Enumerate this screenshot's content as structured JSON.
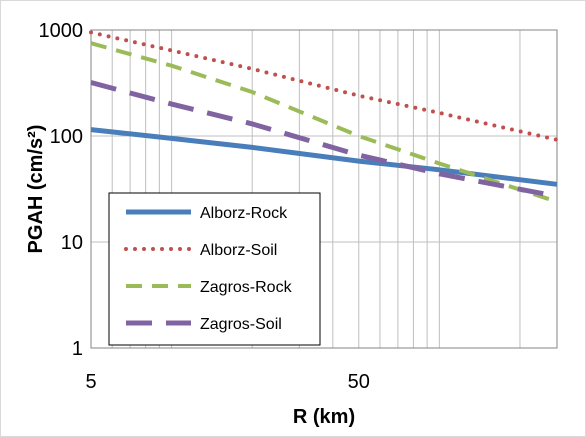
{
  "chart_data": {
    "type": "line",
    "title": "",
    "xlabel": "R (km)",
    "ylabel": "PGAH (cm/s²)",
    "xscale": "log",
    "yscale": "log",
    "xlim": [
      5,
      275
    ],
    "ylim": [
      1,
      1000
    ],
    "grid": true,
    "legend_position": "left-middle",
    "x_ticks": [
      "5",
      "50"
    ],
    "y_ticks": [
      "1",
      "10",
      "100",
      "1000"
    ],
    "series": [
      {
        "name": "Alborz-Rock",
        "color": "#4a7ebb",
        "dash": "solid",
        "x": [
          5,
          10,
          20,
          50,
          100,
          275
        ],
        "y": [
          115,
          95,
          78,
          58,
          48,
          35
        ]
      },
      {
        "name": "Alborz-Soil",
        "color": "#c0504d",
        "dash": "dot",
        "x": [
          5,
          10,
          20,
          50,
          100,
          275
        ],
        "y": [
          950,
          640,
          430,
          240,
          165,
          92
        ]
      },
      {
        "name": "Zagros-Rock",
        "color": "#9bbb59",
        "dash": "dash",
        "x": [
          5,
          10,
          20,
          50,
          100,
          275
        ],
        "y": [
          750,
          460,
          260,
          100,
          55,
          24
        ]
      },
      {
        "name": "Zagros-Soil",
        "color": "#8064a2",
        "dash": "longdash",
        "x": [
          5,
          10,
          20,
          50,
          100,
          275
        ],
        "y": [
          320,
          200,
          130,
          66,
          44,
          27
        ]
      }
    ]
  }
}
